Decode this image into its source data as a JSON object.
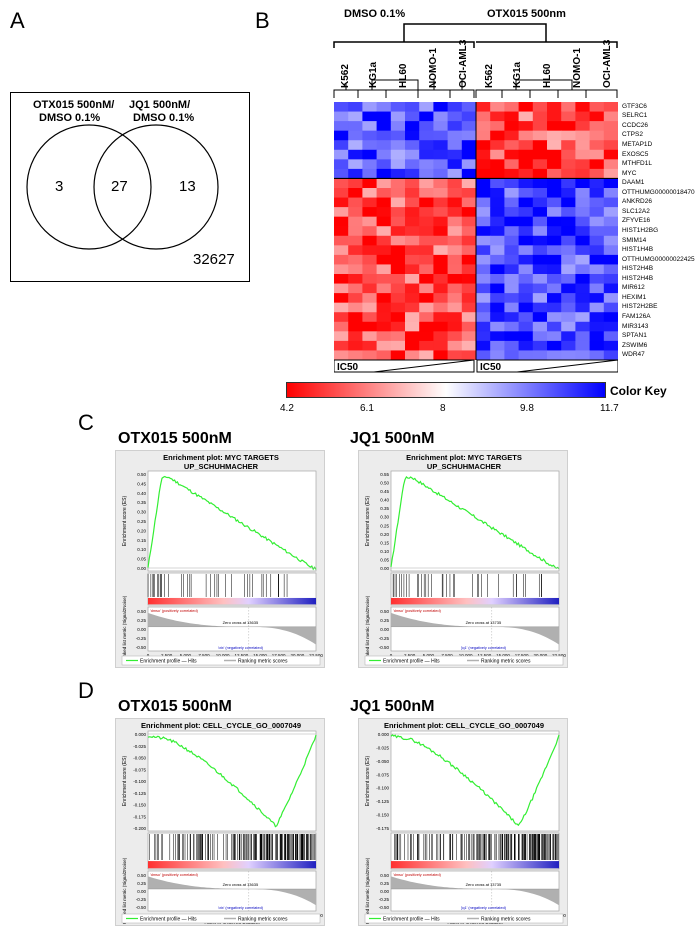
{
  "panels": {
    "A": "A",
    "B": "B",
    "C": "C",
    "D": "D"
  },
  "venn": {
    "left_title_line1": "OTX015 500nM/",
    "left_title_line2": "DMSO 0.1%",
    "right_title_line1": "JQ1 500nM/",
    "right_title_line2": "DMSO 0.1%",
    "left_only": "3",
    "overlap": "27",
    "right_only": "13",
    "outside": "32627"
  },
  "heatmap": {
    "group_dmso": "DMSO 0.1%",
    "group_otx": "OTX015 500nm",
    "cell_lines": [
      "K562",
      "KG1a",
      "HL60",
      "NOMO-1",
      "OCI-AML3"
    ],
    "genes": [
      "GTF3C6",
      "SELRC1",
      "CCDC26",
      "CTPS2",
      "METAP1D",
      "EXOSC5",
      "MTHFD1L",
      "MYC",
      "DAAM1",
      "OTTHUMG00000018470",
      "ANKRD26",
      "SLC12A2",
      "ZFYVE16",
      "HIST1H2BG",
      "SMIM14",
      "HIST1H4B",
      "OTTHUMG00000022425",
      "HIST2H4B",
      "HIST2H4B",
      "MIR612",
      "HEXIM1",
      "HIST2H2BE",
      "FAM126A",
      "MIR3143",
      "SPTAN1",
      "ZSWIM6",
      "WDR47"
    ],
    "ic50_label": "IC50",
    "color_key_label": "Color Key",
    "color_key_ticks": [
      "4.2",
      "6.1",
      "8",
      "9.8",
      "11.7"
    ],
    "colors": {
      "low": "#ff0000",
      "mid": "#ffffff",
      "high": "#0000ff"
    }
  },
  "gsea_c": {
    "left_title": "OTX015 500nM",
    "right_title": "JQ1 500nM",
    "plot_title_line1": "Enrichment plot: MYC TARGETS",
    "plot_title_line2": "UP_SCHUHMACHER",
    "left_es_ticks": [
      "0.50",
      "0.45",
      "0.40",
      "0.35",
      "0.30",
      "0.25",
      "0.20",
      "0.15",
      "0.10",
      "0.05",
      "0.00"
    ],
    "right_es_ticks": [
      "0.55",
      "0.50",
      "0.45",
      "0.40",
      "0.35",
      "0.30",
      "0.25",
      "0.20",
      "0.15",
      "0.10",
      "0.05",
      "0.00"
    ],
    "left_zero_cross": "Zero cross at 13635",
    "right_zero_cross": "Zero cross at 13735"
  },
  "gsea_d": {
    "left_title": "OTX015 500nM",
    "right_title": "JQ1 500nM",
    "plot_title": "Enrichment plot: CELL_CYCLE_GO_0007049",
    "left_es_ticks": [
      "0.000",
      "-0.025",
      "-0.050",
      "-0.075",
      "-0.100",
      "-0.125",
      "-0.150",
      "-0.175",
      "-0.200"
    ],
    "right_es_ticks": [
      "0.000",
      "-0.025",
      "-0.050",
      "-0.075",
      "-0.100",
      "-0.125",
      "-0.150",
      "-0.175"
    ],
    "left_zero_cross": "Zero cross at 13635",
    "right_zero_cross": "Zero cross at 13735"
  },
  "gsea_common": {
    "es_axis_label": "Enrichment score (ES)",
    "metric_axis_label": "Ranked list metric (Signal2Noise)",
    "x_axis_label": "Rank in Ordered Dataset",
    "x_ticks": [
      "0",
      "2,500",
      "5,000",
      "7,500",
      "10,000",
      "12,500",
      "15,000",
      "17,500",
      "20,000",
      "22,500"
    ],
    "metric_ticks": [
      "0.50",
      "0.25",
      "0.00",
      "-0.25",
      "-0.50"
    ],
    "left_pos_label": "'dmso' (positively correlated)",
    "left_neg_label": "'otx' (negatively correlated)",
    "right_pos_label": "'dmso' (positively correlated)",
    "right_neg_label": "'jq1' (negatively correlated)",
    "legend_profile": "Enrichment profile — Hits",
    "legend_metric": "Ranking metric scores",
    "colors": {
      "curve": "#33ee33",
      "hits": "#000000",
      "metric": "#b0b0b0"
    }
  }
}
